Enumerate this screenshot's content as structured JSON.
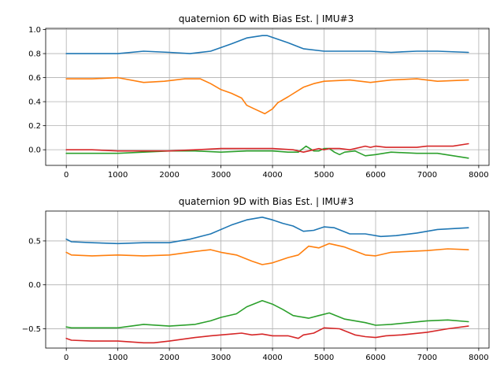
{
  "chart_data": [
    {
      "type": "line",
      "title": "quaternion 6D with Bias Est. | IMU#3",
      "xlim": [
        -400,
        8200
      ],
      "ylim": [
        -0.13,
        1.01
      ],
      "x_ticks": [
        0,
        1000,
        2000,
        3000,
        4000,
        5000,
        6000,
        7000,
        8000
      ],
      "x_tick_labels": [
        "0",
        "1000",
        "2000",
        "3000",
        "4000",
        "5000",
        "6000",
        "7000",
        "8000"
      ],
      "y_ticks": [
        0.0,
        0.2,
        0.4,
        0.6,
        0.8,
        1.0
      ],
      "y_tick_labels": [
        "0.0",
        "0.2",
        "0.4",
        "0.6",
        "0.8",
        "1.0"
      ],
      "grid": true,
      "series": [
        {
          "color": "#1f77b4",
          "x": [
            0,
            500,
            1000,
            1500,
            2000,
            2400,
            2800,
            3200,
            3500,
            3800,
            3900,
            4100,
            4300,
            4600,
            5000,
            5500,
            5900,
            6300,
            6800,
            7200,
            7800
          ],
          "y": [
            0.8,
            0.8,
            0.8,
            0.82,
            0.81,
            0.8,
            0.82,
            0.88,
            0.93,
            0.95,
            0.95,
            0.92,
            0.89,
            0.84,
            0.82,
            0.82,
            0.82,
            0.81,
            0.82,
            0.82,
            0.81
          ]
        },
        {
          "color": "#ff7f0e",
          "x": [
            0,
            500,
            1000,
            1500,
            1900,
            2300,
            2600,
            2800,
            3000,
            3200,
            3400,
            3500,
            3650,
            3850,
            4000,
            4100,
            4300,
            4600,
            4800,
            5000,
            5500,
            5900,
            6300,
            6800,
            7200,
            7800
          ],
          "y": [
            0.59,
            0.59,
            0.6,
            0.56,
            0.57,
            0.59,
            0.59,
            0.55,
            0.5,
            0.47,
            0.43,
            0.37,
            0.34,
            0.3,
            0.34,
            0.39,
            0.44,
            0.52,
            0.55,
            0.57,
            0.58,
            0.56,
            0.58,
            0.59,
            0.57,
            0.58
          ]
        },
        {
          "color": "#2ca02c",
          "x": [
            0,
            500,
            1000,
            1500,
            2000,
            2500,
            3000,
            3500,
            4000,
            4300,
            4500,
            4650,
            4800,
            4900,
            5000,
            5100,
            5200,
            5300,
            5400,
            5600,
            5800,
            6000,
            6300,
            6800,
            7200,
            7800
          ],
          "y": [
            -0.03,
            -0.03,
            -0.03,
            -0.02,
            -0.01,
            -0.01,
            -0.02,
            -0.01,
            -0.01,
            -0.02,
            -0.02,
            0.03,
            -0.01,
            -0.01,
            0.01,
            0.01,
            -0.02,
            -0.04,
            -0.02,
            -0.01,
            -0.05,
            -0.04,
            -0.02,
            -0.03,
            -0.03,
            -0.07
          ]
        },
        {
          "color": "#d62728",
          "x": [
            0,
            500,
            1000,
            1500,
            2000,
            2500,
            3000,
            3500,
            4000,
            4400,
            4600,
            4700,
            4800,
            4900,
            5000,
            5100,
            5300,
            5500,
            5800,
            5900,
            6000,
            6200,
            6500,
            6800,
            7000,
            7500,
            7800
          ],
          "y": [
            0.0,
            0.0,
            -0.01,
            -0.01,
            -0.01,
            0.0,
            0.01,
            0.01,
            0.01,
            0.0,
            -0.02,
            -0.01,
            0.0,
            0.01,
            0.0,
            0.01,
            0.01,
            0.0,
            0.03,
            0.02,
            0.03,
            0.02,
            0.02,
            0.02,
            0.03,
            0.03,
            0.05
          ]
        }
      ]
    },
    {
      "type": "line",
      "title": "quaternion 9D with Bias Est.  | IMU#3",
      "xlim": [
        -400,
        8200
      ],
      "ylim": [
        -0.72,
        0.84
      ],
      "x_ticks": [
        0,
        1000,
        2000,
        3000,
        4000,
        5000,
        6000,
        7000,
        8000
      ],
      "x_tick_labels": [
        "0",
        "1000",
        "2000",
        "3000",
        "4000",
        "5000",
        "6000",
        "7000",
        "8000"
      ],
      "y_ticks": [
        -0.5,
        0.0,
        0.5
      ],
      "y_tick_labels": [
        "−0.5",
        "0.0",
        "0.5"
      ],
      "grid": true,
      "series": [
        {
          "color": "#1f77b4",
          "x": [
            0,
            100,
            500,
            1000,
            1500,
            2000,
            2400,
            2800,
            3200,
            3500,
            3800,
            4000,
            4200,
            4400,
            4600,
            4800,
            5000,
            5200,
            5500,
            5800,
            6100,
            6400,
            6800,
            7200,
            7800
          ],
          "y": [
            0.52,
            0.49,
            0.48,
            0.47,
            0.48,
            0.48,
            0.52,
            0.58,
            0.68,
            0.74,
            0.77,
            0.74,
            0.7,
            0.67,
            0.61,
            0.62,
            0.66,
            0.65,
            0.58,
            0.58,
            0.55,
            0.56,
            0.59,
            0.63,
            0.65
          ]
        },
        {
          "color": "#ff7f0e",
          "x": [
            0,
            100,
            500,
            1000,
            1500,
            2000,
            2500,
            2800,
            3000,
            3300,
            3600,
            3800,
            4000,
            4300,
            4500,
            4700,
            4900,
            5100,
            5400,
            5800,
            6000,
            6300,
            7000,
            7400,
            7800
          ],
          "y": [
            0.37,
            0.34,
            0.33,
            0.34,
            0.33,
            0.34,
            0.38,
            0.4,
            0.37,
            0.34,
            0.27,
            0.23,
            0.25,
            0.31,
            0.34,
            0.44,
            0.42,
            0.47,
            0.43,
            0.34,
            0.33,
            0.37,
            0.39,
            0.41,
            0.4
          ]
        },
        {
          "color": "#2ca02c",
          "x": [
            0,
            100,
            500,
            1000,
            1500,
            2000,
            2500,
            2800,
            3000,
            3300,
            3500,
            3800,
            4000,
            4200,
            4400,
            4700,
            4900,
            5100,
            5400,
            5600,
            5800,
            6000,
            6300,
            7000,
            7400,
            7800
          ],
          "y": [
            -0.48,
            -0.49,
            -0.49,
            -0.49,
            -0.45,
            -0.47,
            -0.45,
            -0.41,
            -0.37,
            -0.33,
            -0.25,
            -0.18,
            -0.22,
            -0.28,
            -0.35,
            -0.38,
            -0.35,
            -0.32,
            -0.39,
            -0.41,
            -0.43,
            -0.46,
            -0.45,
            -0.41,
            -0.4,
            -0.42
          ]
        },
        {
          "color": "#d62728",
          "x": [
            0,
            100,
            500,
            1000,
            1500,
            1700,
            2000,
            2500,
            2800,
            3000,
            3200,
            3400,
            3600,
            3800,
            4000,
            4300,
            4500,
            4600,
            4800,
            5000,
            5300,
            5600,
            5800,
            6000,
            6200,
            6500,
            7000,
            7400,
            7800
          ],
          "y": [
            -0.61,
            -0.63,
            -0.64,
            -0.64,
            -0.66,
            -0.66,
            -0.64,
            -0.6,
            -0.58,
            -0.57,
            -0.56,
            -0.55,
            -0.57,
            -0.56,
            -0.58,
            -0.58,
            -0.61,
            -0.57,
            -0.55,
            -0.49,
            -0.5,
            -0.57,
            -0.59,
            -0.6,
            -0.58,
            -0.57,
            -0.54,
            -0.5,
            -0.47
          ]
        }
      ]
    }
  ]
}
